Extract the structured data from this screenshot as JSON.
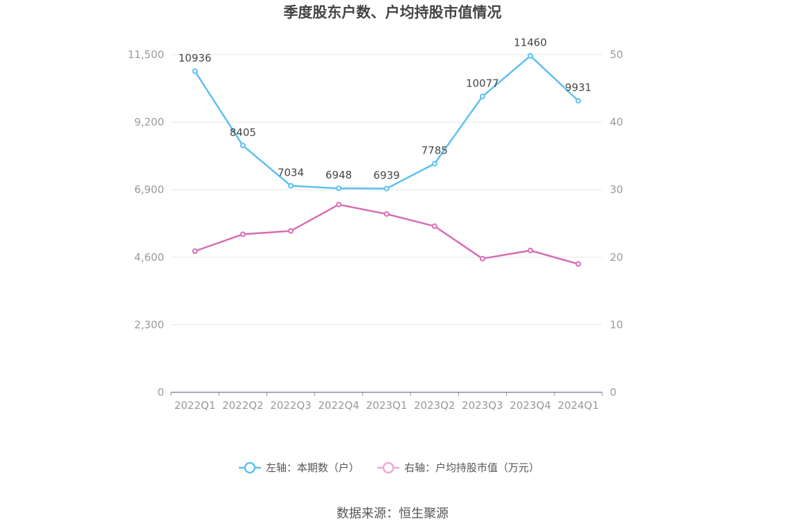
{
  "chart_data": {
    "type": "line",
    "title": "季度股东户数、户均持股市值情况",
    "categories": [
      "2022Q1",
      "2022Q2",
      "2022Q3",
      "2022Q4",
      "2023Q1",
      "2023Q2",
      "2023Q3",
      "2023Q4",
      "2024Q1"
    ],
    "y_left": {
      "min": 0,
      "max": 11500,
      "ticks": [
        "0",
        "2,300",
        "4,600",
        "6,900",
        "9,200",
        "11,500"
      ],
      "tick_values": [
        0,
        2300,
        4600,
        6900,
        9200,
        11500
      ]
    },
    "y_right": {
      "min": 0,
      "max": 50,
      "ticks": [
        "0",
        "10",
        "20",
        "30",
        "40",
        "50"
      ],
      "tick_values": [
        0,
        10,
        20,
        30,
        40,
        50
      ]
    },
    "series": [
      {
        "name": "左轴：本期数（户）",
        "axis": "left",
        "color": "#5bc0f2",
        "show_labels": true,
        "values": [
          10936,
          8405,
          7034,
          6948,
          6939,
          7785,
          10077,
          11460,
          9931
        ]
      },
      {
        "name": "右轴：户均持股市值（万元）",
        "axis": "right",
        "color": "#d86bb4",
        "legend_color": "#eba9d4",
        "show_labels": false,
        "values": [
          20.9,
          23.4,
          23.9,
          27.8,
          26.4,
          24.6,
          19.8,
          21.0,
          19.0
        ]
      }
    ],
    "grid": true,
    "legend_position": "bottom"
  },
  "footer": {
    "source": "数据来源：恒生聚源"
  }
}
